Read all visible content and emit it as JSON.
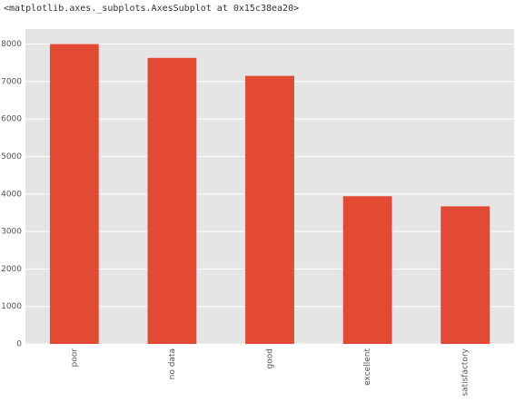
{
  "output_text": "<matplotlib.axes._subplots.AxesSubplot at 0x15c38ea20>",
  "chart_data": {
    "type": "bar",
    "categories": [
      "poor",
      "no data",
      "good",
      "excellent",
      "satisfactory"
    ],
    "values": [
      8000,
      7630,
      7150,
      3940,
      3670
    ],
    "color": "#E24A33",
    "ylim": [
      0,
      8400
    ],
    "yticks": [
      0,
      1000,
      2000,
      3000,
      4000,
      5000,
      6000,
      7000,
      8000
    ],
    "grid": true
  }
}
